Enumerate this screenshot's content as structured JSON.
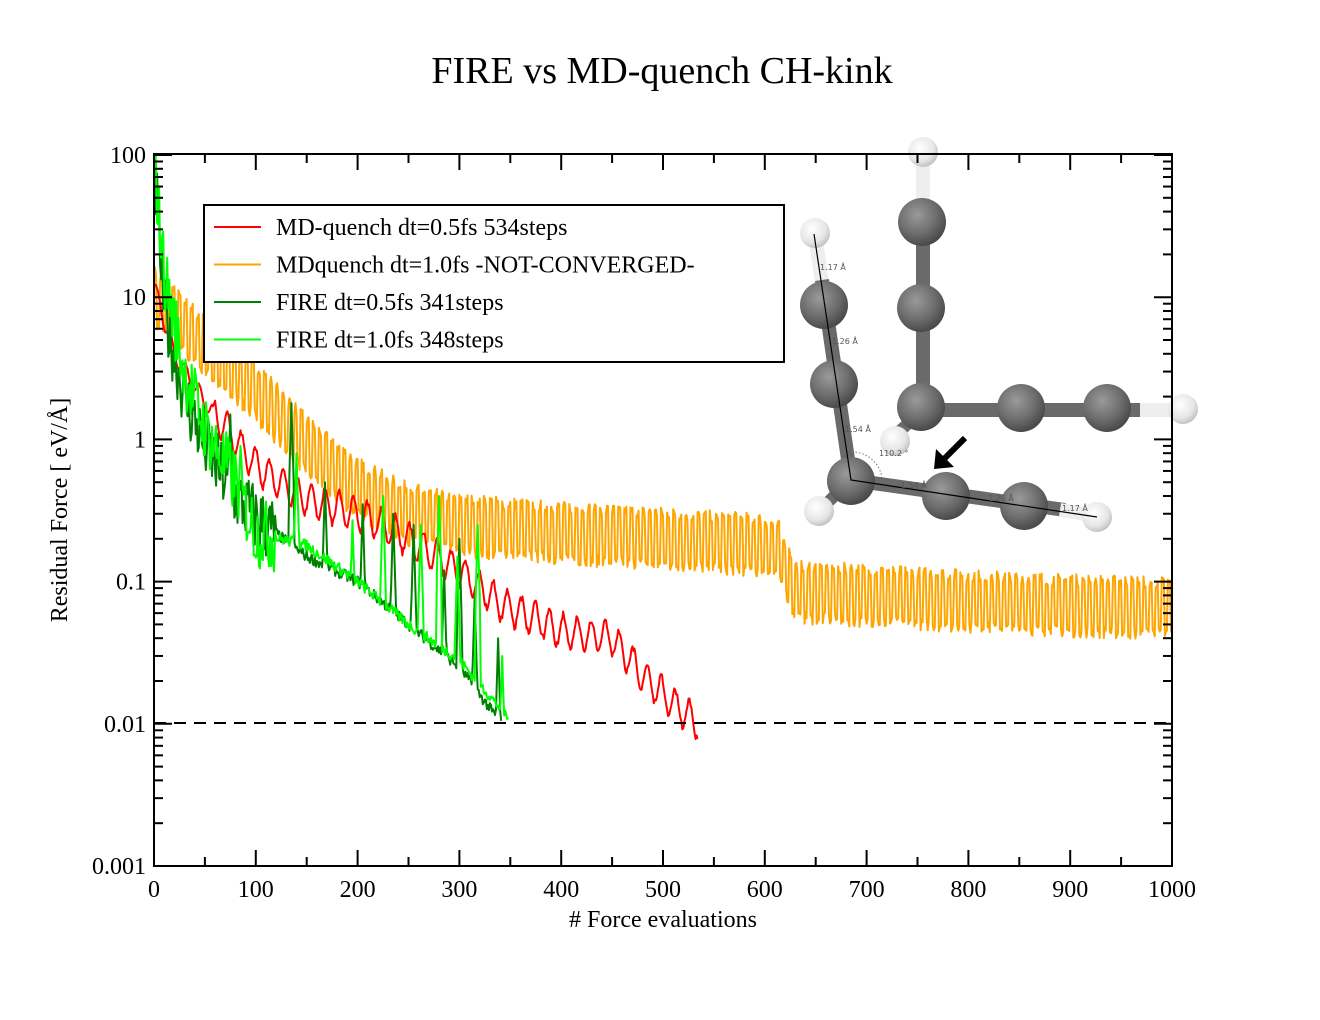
{
  "chart_data": {
    "type": "line",
    "title": "FIRE vs MD-quench CH-kink",
    "xlabel": "# Force evaluations",
    "ylabel": "Residual Force [ eV/Å]",
    "xlim": [
      0,
      1000
    ],
    "ylim": [
      0.001,
      100
    ],
    "yscale": "log",
    "x_ticks": [
      0,
      100,
      200,
      300,
      400,
      500,
      600,
      700,
      800,
      900,
      1000
    ],
    "x_tick_labels": [
      "0",
      "100",
      "200",
      "300",
      "400",
      "500",
      "600",
      "700",
      "800",
      "900",
      "1000"
    ],
    "y_ticks": [
      0.001,
      0.01,
      0.1,
      1,
      10,
      100
    ],
    "y_tick_labels": [
      "0.001",
      "0.01",
      "0.1",
      "1",
      "10",
      "100"
    ],
    "grid": false,
    "legend_position": "top-left",
    "threshold": {
      "value": 0.01,
      "style": "dashed",
      "color": "#000000"
    },
    "series": [
      {
        "name": "MD-quench dt=0.5fs 534steps",
        "color": "#ff0000",
        "steps": 534,
        "converged": true,
        "envelope": [
          [
            0,
            12
          ],
          [
            20,
            4
          ],
          [
            50,
            1.8
          ],
          [
            80,
            1.0
          ],
          [
            100,
            0.65
          ],
          [
            150,
            0.38
          ],
          [
            200,
            0.3
          ],
          [
            250,
            0.2
          ],
          [
            300,
            0.12
          ],
          [
            340,
            0.07
          ],
          [
            400,
            0.045
          ],
          [
            450,
            0.04
          ],
          [
            480,
            0.022
          ],
          [
            500,
            0.016
          ],
          [
            534,
            0.01
          ]
        ],
        "oscillation_factor": 1.8,
        "oscillation_period": 22
      },
      {
        "name": "MDquench dt=1.0fs -NOT-CONVERGED-",
        "color": "#ffa500",
        "steps": 1000,
        "converged": false,
        "envelope": [
          [
            0,
            10
          ],
          [
            50,
            4.5
          ],
          [
            100,
            2.2
          ],
          [
            150,
            0.9
          ],
          [
            200,
            0.45
          ],
          [
            250,
            0.3
          ],
          [
            300,
            0.25
          ],
          [
            400,
            0.22
          ],
          [
            500,
            0.2
          ],
          [
            600,
            0.18
          ],
          [
            615,
            0.16
          ],
          [
            630,
            0.085
          ],
          [
            700,
            0.08
          ],
          [
            800,
            0.073
          ],
          [
            900,
            0.068
          ],
          [
            1000,
            0.065
          ]
        ],
        "oscillation_factor": 2.3,
        "oscillation_period": 6
      },
      {
        "name": "FIRE dt=0.5fs 341steps",
        "color": "#008000",
        "steps": 341,
        "converged": true,
        "envelope": [
          [
            0,
            90
          ],
          [
            10,
            8
          ],
          [
            30,
            2
          ],
          [
            50,
            0.9
          ],
          [
            80,
            0.4
          ],
          [
            100,
            0.28
          ],
          [
            150,
            0.15
          ],
          [
            200,
            0.1
          ],
          [
            250,
            0.05
          ],
          [
            300,
            0.025
          ],
          [
            341,
            0.01
          ]
        ],
        "spikes": [
          [
            75,
            1.5
          ],
          [
            135,
            1.8
          ],
          [
            168,
            0.5
          ],
          [
            205,
            0.35
          ],
          [
            235,
            0.3
          ],
          [
            255,
            0.25
          ],
          [
            285,
            0.12
          ],
          [
            300,
            0.2
          ],
          [
            315,
            0.08
          ],
          [
            338,
            0.04
          ]
        ]
      },
      {
        "name": "FIRE dt=1.0fs 348steps",
        "color": "#00ff00",
        "steps": 348,
        "converged": true,
        "envelope": [
          [
            0,
            95
          ],
          [
            10,
            15
          ],
          [
            30,
            3
          ],
          [
            50,
            1.2
          ],
          [
            80,
            0.5
          ],
          [
            100,
            0.22
          ],
          [
            150,
            0.18
          ],
          [
            200,
            0.1
          ],
          [
            250,
            0.05
          ],
          [
            300,
            0.028
          ],
          [
            348,
            0.011
          ]
        ],
        "spikes": [
          [
            85,
            0.9
          ],
          [
            140,
            0.8
          ],
          [
            195,
            0.27
          ],
          [
            225,
            0.4
          ],
          [
            262,
            0.25
          ],
          [
            280,
            0.4
          ],
          [
            298,
            0.15
          ],
          [
            318,
            0.25
          ],
          [
            342,
            0.03
          ]
        ]
      }
    ]
  },
  "inset": {
    "description": "CH-kink molecule structure",
    "bond_labels": [
      "1.17 Å",
      "1.26 Å",
      "1.54 Å",
      "1.54 Å",
      "1.26 Å",
      "1.17 Å"
    ],
    "angle_label": "110.2 °",
    "arrow": "pointing-down-left"
  }
}
